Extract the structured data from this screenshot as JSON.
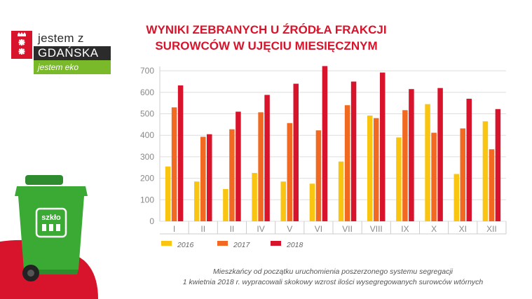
{
  "logo": {
    "line1": "jestem z",
    "line2": "GDAŃSKA",
    "line3": "jestem eko"
  },
  "bin_label": "szkło",
  "colors": {
    "accent": "#d7142b",
    "eco_green": "#7ab929",
    "bin_green": "#3aaa35"
  },
  "caption": {
    "line1": "Mieszkańcy od początku uruchomienia poszerzonego systemu segregacji",
    "line2": "1 kwietnia 2018 r. wypracowali skokowy wzrost ilości wysegregowanych surowców wtórnych"
  },
  "chart_data": {
    "type": "bar",
    "title_lines": [
      "WYNIKI ZEBRANYCH U ŹRÓDŁA FRAKCJI",
      "SUROWCÓW W UJĘCIU MIESIĘCZNYM"
    ],
    "categories": [
      "I",
      "II",
      "II",
      "IV",
      "V",
      "VI",
      "VII",
      "VIII",
      "IX",
      "X",
      "XI",
      "XII"
    ],
    "series": [
      {
        "name": "2016",
        "color": "#f9c511",
        "values": [
          255,
          185,
          150,
          225,
          185,
          175,
          278,
          492,
          390,
          545,
          220,
          465
        ]
      },
      {
        "name": "2017",
        "color": "#f26a21",
        "values": [
          530,
          393,
          428,
          507,
          457,
          423,
          540,
          480,
          517,
          412,
          432,
          335
        ]
      },
      {
        "name": "2018",
        "color": "#d7142b",
        "values": [
          632,
          405,
          510,
          588,
          640,
          722,
          650,
          692,
          615,
          620,
          570,
          522
        ]
      }
    ],
    "yticks": [
      0,
      100,
      200,
      300,
      400,
      500,
      600,
      700
    ],
    "ylim": [
      0,
      720
    ],
    "grid": true,
    "legend": "bottom-left"
  }
}
